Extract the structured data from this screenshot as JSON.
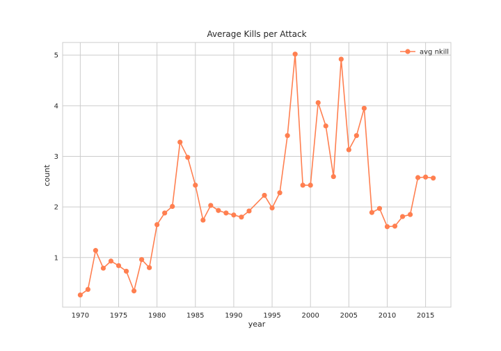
{
  "chart_data": {
    "type": "line",
    "title": "Average Kills per Attack",
    "xlabel": "year",
    "ylabel": "count",
    "xlim": [
      1967.7,
      2018.3
    ],
    "ylim": [
      0.02,
      5.25
    ],
    "xticks": [
      1970,
      1975,
      1980,
      1985,
      1990,
      1995,
      2000,
      2005,
      2010,
      2015
    ],
    "yticks": [
      1,
      2,
      3,
      4,
      5
    ],
    "grid": true,
    "legend_position": "top-right",
    "colors": {
      "line": "#ff7f50",
      "grid": "#cccccc",
      "frame": "#cccccc"
    },
    "series": [
      {
        "name": "avg nkill",
        "x": [
          1970,
          1971,
          1972,
          1973,
          1974,
          1975,
          1976,
          1977,
          1978,
          1979,
          1980,
          1981,
          1982,
          1983,
          1984,
          1985,
          1986,
          1987,
          1988,
          1989,
          1990,
          1991,
          1992,
          1994,
          1995,
          1996,
          1997,
          1998,
          1999,
          2000,
          2001,
          2002,
          2003,
          2004,
          2005,
          2006,
          2007,
          2008,
          2009,
          2010,
          2011,
          2012,
          2013,
          2014,
          2015,
          2016
        ],
        "y": [
          0.26,
          0.37,
          1.14,
          0.79,
          0.93,
          0.84,
          0.73,
          0.34,
          0.96,
          0.8,
          1.65,
          1.88,
          2.01,
          3.28,
          2.98,
          2.43,
          1.74,
          2.03,
          1.93,
          1.88,
          1.84,
          1.8,
          1.92,
          2.23,
          1.98,
          2.28,
          3.41,
          5.02,
          2.43,
          2.43,
          4.06,
          3.6,
          2.6,
          4.92,
          3.13,
          3.41,
          3.95,
          1.89,
          1.97,
          1.61,
          1.62,
          1.81,
          1.85,
          2.58,
          2.59,
          2.57
        ]
      }
    ]
  }
}
